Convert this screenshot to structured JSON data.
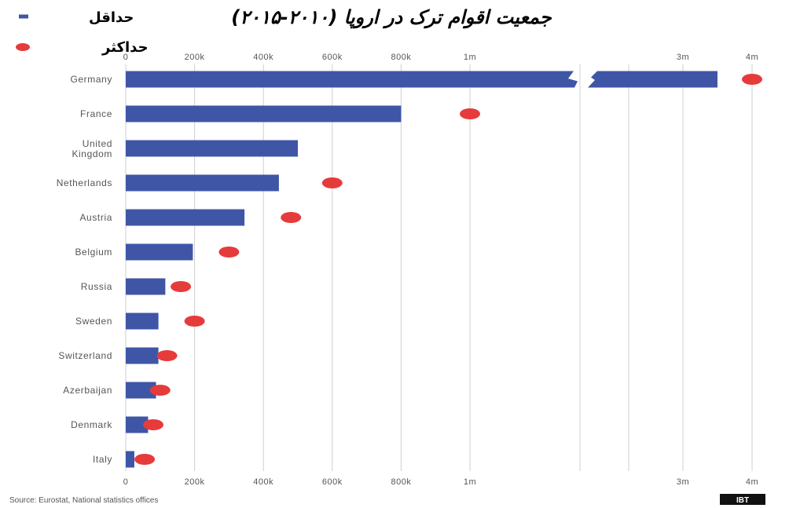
{
  "title": "جمعیت اقوام ترک در اروپا (۲۰۱۰-۲۰۱۵)",
  "legend": [
    {
      "label": "حداقل",
      "symbol": "dash",
      "color": "#3f56a6"
    },
    {
      "label": "حداکثر",
      "symbol": "dot",
      "color": "#e63b3b"
    }
  ],
  "source": "Source: Eurostat, National statistics offices",
  "logo": "IBT",
  "chart_data": {
    "type": "bar",
    "orientation": "horizontal",
    "x_scale": "broken",
    "axis_break": [
      1000000,
      3000000
    ],
    "xlim": [
      0,
      4000000
    ],
    "ticks": [
      {
        "value": 0,
        "label": "0"
      },
      {
        "value": 200000,
        "label": "200k"
      },
      {
        "value": 400000,
        "label": "400k"
      },
      {
        "value": 600000,
        "label": "600k"
      },
      {
        "value": 800000,
        "label": "800k"
      },
      {
        "value": 1000000,
        "label": "1m"
      },
      {
        "value": 3000000,
        "label": "3m"
      },
      {
        "value": 4000000,
        "label": "4m"
      }
    ],
    "categories": [
      "Germany",
      "France",
      "United Kingdom",
      "Netherlands",
      "Austria",
      "Belgium",
      "Russia",
      "Sweden",
      "Switzerland",
      "Azerbaijan",
      "Denmark",
      "Italy"
    ],
    "series": [
      {
        "name": "حداقل",
        "type": "bar",
        "color": "#3f56a6",
        "values": [
          3500000,
          800000,
          500000,
          445000,
          345000,
          195000,
          115000,
          95000,
          95000,
          88000,
          65000,
          25000
        ]
      },
      {
        "name": "حداکثر",
        "type": "dot",
        "color": "#e63b3b",
        "values": [
          4000000,
          1000000,
          null,
          600000,
          480000,
          300000,
          160000,
          200000,
          120000,
          100000,
          80000,
          55000
        ]
      }
    ],
    "grid": true,
    "legend_position": "top-right"
  }
}
